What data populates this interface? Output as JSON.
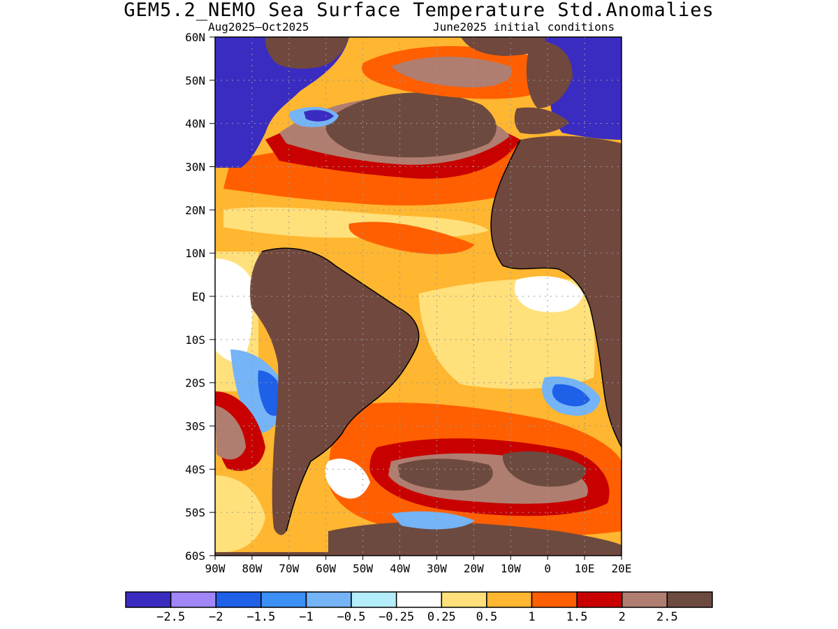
{
  "title": "GEM5.2_NEMO Sea Surface Temperature Std.Anomalies",
  "subtitle_left": "Aug2025—Oct2025",
  "subtitle_right": "June2025 initial conditions",
  "lat_labels": [
    "60N",
    "50N",
    "40N",
    "30N",
    "20N",
    "10N",
    "EQ",
    "10S",
    "20S",
    "30S",
    "40S",
    "50S",
    "60S"
  ],
  "lon_labels": [
    "90W",
    "80W",
    "70W",
    "60W",
    "50W",
    "40W",
    "30W",
    "20W",
    "10W",
    "0",
    "10E",
    "20E"
  ],
  "colorbar": {
    "colors": [
      "#3a2cc0",
      "#a086f7",
      "#1e60e8",
      "#3b8ff5",
      "#74b4f7",
      "#b4eefa",
      "#ffffff",
      "#ffe07a",
      "#ffb630",
      "#ff5f00",
      "#c80000",
      "#b07e70",
      "#6d4a3f"
    ],
    "tick_labels": [
      "−2.5",
      "−2",
      "−1.5",
      "−1",
      "−0.5",
      "−0.25",
      "0.25",
      "0.5",
      "1",
      "1.5",
      "2",
      "2.5"
    ]
  },
  "palette": {
    "land": "#70483d",
    "cold_land_fill": "#3a2cc0",
    "background_ocean": "#ffb630"
  }
}
